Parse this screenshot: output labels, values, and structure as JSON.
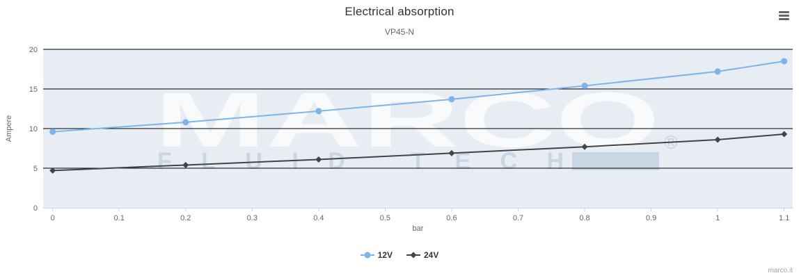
{
  "header": {
    "title": "Electrical absorption",
    "subtitle": "VP45-N"
  },
  "menu": {
    "icon": "hamburger-icon"
  },
  "credits": {
    "label": "marco.it"
  },
  "watermark": {
    "main": "MARCO",
    "sub": "FLUID TECH",
    "reg": "®"
  },
  "colors": {
    "plot_background": "#e8edf3",
    "grid_line": "#000000",
    "axis_line": "#ccd6eb",
    "tick_label": "#666666",
    "axis_title": "#666666",
    "series_12v": "#7cb5ec",
    "series_24v": "#434348",
    "watermark_main": "rgba(255,255,255,0.7)",
    "watermark_sub": "#c9d7e5"
  },
  "chart_data": {
    "type": "line",
    "title": "Electrical absorption",
    "subtitle": "VP45-N",
    "xlabel": "bar",
    "ylabel": "Ampere",
    "x": [
      0,
      0.2,
      0.4,
      0.6,
      0.8,
      1,
      1.1
    ],
    "series": [
      {
        "name": "12V",
        "color": "#7cb5ec",
        "marker": "circle",
        "values": [
          9.6,
          10.8,
          12.2,
          13.7,
          15.4,
          17.2,
          18.5
        ]
      },
      {
        "name": "24V",
        "color": "#434348",
        "marker": "diamond",
        "values": [
          4.7,
          5.4,
          6.1,
          6.9,
          7.7,
          8.6,
          9.3
        ]
      }
    ],
    "xticks": [
      0,
      0.1,
      0.2,
      0.3,
      0.4,
      0.5,
      0.6,
      0.7,
      0.8,
      0.9,
      1,
      1.1
    ],
    "yticks": [
      0,
      5,
      10,
      15,
      20
    ],
    "xlim": [
      -0.0143,
      1.1129
    ],
    "ylim": [
      0,
      20
    ],
    "grid": true,
    "legend_position": "bottom"
  }
}
